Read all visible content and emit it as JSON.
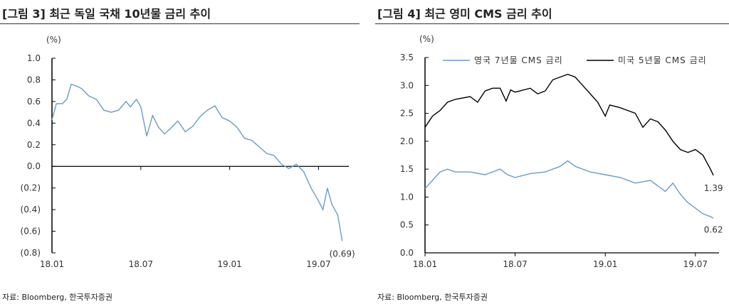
{
  "chart_data": [
    {
      "type": "line",
      "title": "[그림 3] 최근 독일 국채 10년물 금리 추이",
      "unit": "(%)",
      "source": "자료: Bloomberg, 한국투자증권",
      "ylim": [
        -0.8,
        1.0
      ],
      "yticks": [
        1.0,
        0.8,
        0.6,
        0.4,
        0.2,
        0.0,
        -0.2,
        -0.4,
        -0.6,
        -0.8
      ],
      "ytick_labels": [
        "1.0",
        "0.8",
        "0.6",
        "0.4",
        "0.2",
        "0.0",
        "(0.2)",
        "(0.4)",
        "(0.6)",
        "(0.8)"
      ],
      "xlim": [
        0,
        20.5
      ],
      "xticks": [
        0,
        6,
        12,
        18
      ],
      "xtick_labels": [
        "18.01",
        "18.07",
        "19.01",
        "19.07"
      ],
      "end_label": "(0.69)",
      "series": [
        {
          "name": "독일 국채 10년물",
          "color": "#6a9bc8",
          "x": [
            0,
            0.3,
            0.7,
            1,
            1.3,
            1.7,
            2,
            2.5,
            3,
            3.5,
            4,
            4.5,
            5,
            5.3,
            5.7,
            6,
            6.4,
            6.8,
            7.2,
            7.6,
            8,
            8.5,
            9,
            9.5,
            10,
            10.5,
            11,
            11.5,
            12,
            12.5,
            13,
            13.5,
            14,
            14.5,
            15,
            15.5,
            16,
            16.5,
            17,
            17.5,
            18,
            18.3,
            18.6,
            18.9,
            19.3,
            19.6
          ],
          "y": [
            0.43,
            0.58,
            0.58,
            0.62,
            0.76,
            0.74,
            0.72,
            0.65,
            0.62,
            0.52,
            0.5,
            0.52,
            0.6,
            0.55,
            0.62,
            0.55,
            0.28,
            0.47,
            0.36,
            0.3,
            0.35,
            0.42,
            0.32,
            0.37,
            0.46,
            0.52,
            0.56,
            0.45,
            0.42,
            0.36,
            0.26,
            0.24,
            0.18,
            0.12,
            0.1,
            0.02,
            -0.02,
            0.02,
            -0.05,
            -0.2,
            -0.32,
            -0.4,
            -0.2,
            -0.35,
            -0.45,
            -0.69
          ]
        }
      ]
    },
    {
      "type": "line",
      "title": "[그림 4] 최근 영미 CMS 금리 추이",
      "unit": "(%)",
      "source": "자료: Bloomberg, 한국투자증권",
      "ylim": [
        0,
        3.5
      ],
      "yticks": [
        3.5,
        3.0,
        2.5,
        2.0,
        1.5,
        1.0,
        0.5,
        0.0
      ],
      "ytick_labels": [
        "3.5",
        "3.0",
        "2.5",
        "2.0",
        "1.5",
        "1.0",
        "0.5",
        "0.0"
      ],
      "xlim": [
        0,
        20.5
      ],
      "xticks": [
        0,
        6,
        12,
        18
      ],
      "xtick_labels": [
        "18.01",
        "18.07",
        "19.01",
        "19.07"
      ],
      "legend_placement": "top",
      "series": [
        {
          "name": "영국 7년물 CMS 금리",
          "color": "#6a9bc8",
          "end_label": "0.62",
          "x": [
            0,
            0.5,
            1,
            1.5,
            2,
            3,
            4,
            5,
            5.5,
            6,
            7,
            8,
            9,
            9.5,
            10,
            11,
            12,
            13,
            14,
            15,
            16,
            16.5,
            17,
            17.5,
            18,
            18.5,
            19,
            19.2
          ],
          "y": [
            1.15,
            1.3,
            1.45,
            1.5,
            1.45,
            1.45,
            1.4,
            1.5,
            1.4,
            1.35,
            1.42,
            1.45,
            1.55,
            1.65,
            1.55,
            1.45,
            1.4,
            1.35,
            1.25,
            1.3,
            1.1,
            1.25,
            1.05,
            0.9,
            0.8,
            0.7,
            0.65,
            0.62
          ]
        },
        {
          "name": "미국 5년물 CMS 금리",
          "color": "#000000",
          "end_label": "1.39",
          "x": [
            0,
            0.5,
            1,
            1.5,
            2,
            3,
            3.5,
            4,
            4.5,
            5,
            5.4,
            5.7,
            6,
            7,
            7.5,
            8,
            8.5,
            9,
            9.5,
            10,
            10.5,
            11,
            11.5,
            12,
            12.3,
            13,
            13.5,
            14,
            14.5,
            15,
            15.5,
            16,
            16.5,
            17,
            17.5,
            18,
            18.5,
            19,
            19.2
          ],
          "y": [
            2.25,
            2.45,
            2.55,
            2.7,
            2.75,
            2.8,
            2.7,
            2.9,
            2.95,
            2.95,
            2.72,
            2.92,
            2.88,
            2.95,
            2.85,
            2.9,
            3.1,
            3.15,
            3.2,
            3.15,
            3.0,
            2.85,
            2.7,
            2.45,
            2.65,
            2.6,
            2.55,
            2.5,
            2.25,
            2.4,
            2.35,
            2.2,
            2.0,
            1.85,
            1.8,
            1.85,
            1.75,
            1.5,
            1.39
          ]
        }
      ]
    }
  ]
}
